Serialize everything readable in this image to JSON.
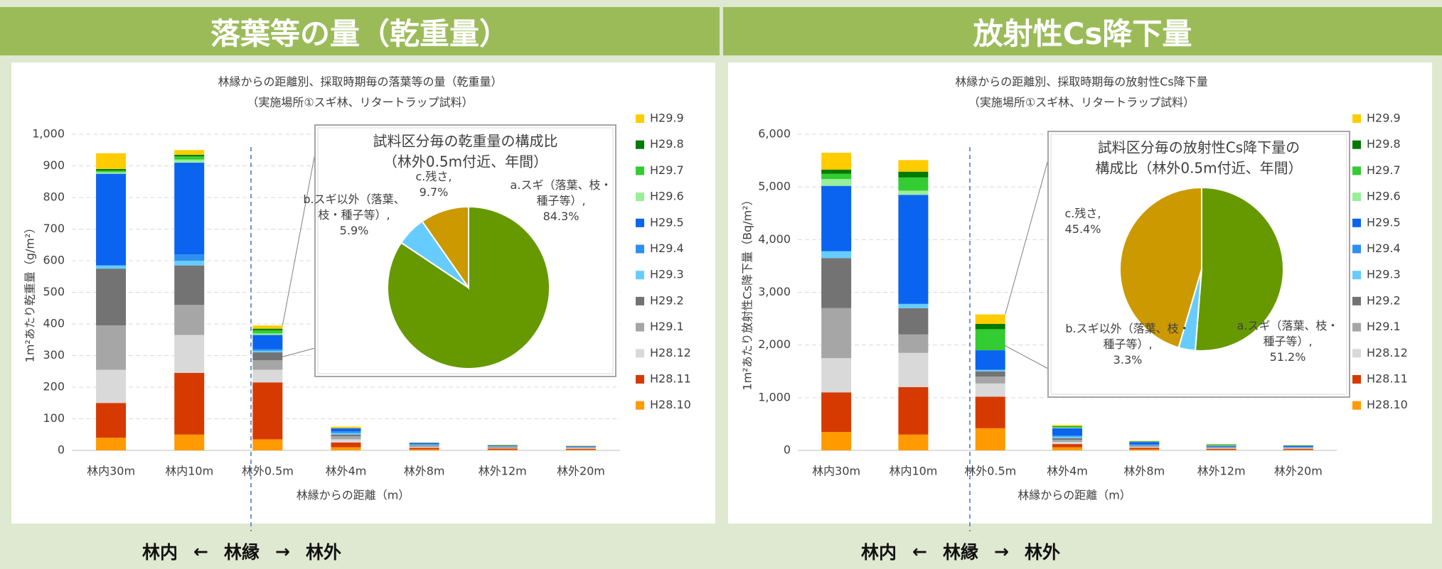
{
  "headers": [
    "落葉等の量（乾重量）",
    "放射性Cs降下量"
  ],
  "footer": [
    "林内",
    "←",
    "林縁",
    "→",
    "林外"
  ],
  "chart_data": [
    {
      "type": "bar",
      "stacked": true,
      "title": "林縁からの距離別、採取時期毎の落葉等の量（乾重量）",
      "subtitle": "（実施場所①スギ林、リタートラップ試料）",
      "xlabel": "林縁からの距離（m）",
      "ylabel": "1m²あたり乾重量（g/m²）",
      "categories": [
        "林内30m",
        "林内10m",
        "林外0.5m",
        "林外4m",
        "林外8m",
        "林外12m",
        "林外20m"
      ],
      "ylim": [
        0,
        1000
      ],
      "yticks": [
        0,
        100,
        200,
        300,
        400,
        500,
        600,
        700,
        800,
        900,
        {
          "value": 1000,
          "label": "1,000"
        }
      ],
      "grid": true,
      "legend": "right",
      "series": [
        {
          "name": "H28.10",
          "color": "#ff9a00",
          "values": [
            40,
            50,
            35,
            10,
            3,
            2,
            2
          ]
        },
        {
          "name": "H28.11",
          "color": "#d63a00",
          "values": [
            110,
            195,
            180,
            15,
            5,
            4,
            3
          ]
        },
        {
          "name": "H28.12",
          "color": "#d9d9d9",
          "values": [
            105,
            120,
            40,
            10,
            3,
            2,
            2
          ]
        },
        {
          "name": "H29.1",
          "color": "#a6a6a6",
          "values": [
            140,
            95,
            30,
            10,
            3,
            2,
            2
          ]
        },
        {
          "name": "H29.2",
          "color": "#737373",
          "values": [
            180,
            125,
            25,
            5,
            2,
            2,
            1
          ]
        },
        {
          "name": "H29.3",
          "color": "#66ccff",
          "values": [
            10,
            15,
            5,
            5,
            2,
            1,
            1
          ]
        },
        {
          "name": "H29.4",
          "color": "#2e8fef",
          "values": [
            0,
            20,
            5,
            5,
            2,
            1,
            1
          ]
        },
        {
          "name": "H29.5",
          "color": "#0a64f0",
          "values": [
            290,
            290,
            45,
            10,
            4,
            2,
            2
          ]
        },
        {
          "name": "H29.6",
          "color": "#99ee99",
          "values": [
            5,
            10,
            5,
            0,
            0,
            0,
            0
          ]
        },
        {
          "name": "H29.7",
          "color": "#33cc33",
          "values": [
            5,
            10,
            10,
            0,
            0,
            1,
            0
          ]
        },
        {
          "name": "H29.8",
          "color": "#007a00",
          "values": [
            5,
            5,
            5,
            0,
            0,
            0,
            0
          ]
        },
        {
          "name": "H29.9",
          "color": "#ffcc00",
          "values": [
            50,
            15,
            10,
            5,
            1,
            1,
            1
          ]
        }
      ]
    },
    {
      "type": "pie",
      "title": "試料区分毎の乾重量の構成比",
      "subtitle": "（林外0.5m付近、年間）",
      "categories": [
        "a.スギ（落葉、枝・種子等）,",
        "b.スギ以外（落葉、枝・種子等）,",
        "c.残さ,"
      ],
      "values": [
        84.3,
        5.9,
        9.7
      ],
      "value_labels": [
        "84.3%",
        "5.9%",
        "9.7%"
      ],
      "colors": [
        "#669900",
        "#66ccff",
        "#cc9900"
      ]
    },
    {
      "type": "bar",
      "stacked": true,
      "title": "林縁からの距離別、採取時期毎の放射性Cs降下量",
      "subtitle": "（実施場所①スギ林、リタートラップ試料）",
      "xlabel": "林縁からの距離（m）",
      "ylabel": "1m²あたり放射性Cs降下量（Bq/m²）",
      "categories": [
        "林内30m",
        "林内10m",
        "林外0.5m",
        "林外4m",
        "林外8m",
        "林外12m",
        "林外20m"
      ],
      "ylim": [
        0,
        6000
      ],
      "yticks": [
        0,
        {
          "value": 1000,
          "label": "1,000"
        },
        {
          "value": 2000,
          "label": "2,000"
        },
        {
          "value": 3000,
          "label": "3,000"
        },
        {
          "value": 4000,
          "label": "4,000"
        },
        {
          "value": 5000,
          "label": "5,000"
        },
        {
          "value": 6000,
          "label": "6,000"
        }
      ],
      "grid": true,
      "legend": "right",
      "series": [
        {
          "name": "H28.10",
          "color": "#ff9a00",
          "values": [
            350,
            300,
            420,
            60,
            20,
            10,
            10
          ]
        },
        {
          "name": "H28.11",
          "color": "#d63a00",
          "values": [
            750,
            900,
            600,
            60,
            30,
            20,
            20
          ]
        },
        {
          "name": "H28.12",
          "color": "#d9d9d9",
          "values": [
            650,
            650,
            250,
            40,
            15,
            10,
            10
          ]
        },
        {
          "name": "H29.1",
          "color": "#a6a6a6",
          "values": [
            950,
            350,
            130,
            40,
            15,
            10,
            10
          ]
        },
        {
          "name": "H29.2",
          "color": "#737373",
          "values": [
            950,
            500,
            100,
            30,
            10,
            10,
            5
          ]
        },
        {
          "name": "H29.3",
          "color": "#66ccff",
          "values": [
            130,
            80,
            30,
            30,
            10,
            5,
            5
          ]
        },
        {
          "name": "H29.4",
          "color": "#2e8fef",
          "values": [
            0,
            0,
            0,
            20,
            10,
            5,
            5
          ]
        },
        {
          "name": "H29.5",
          "color": "#0a64f0",
          "values": [
            1240,
            2070,
            370,
            140,
            50,
            20,
            25
          ]
        },
        {
          "name": "H29.6",
          "color": "#99ee99",
          "values": [
            130,
            80,
            0,
            10,
            5,
            10,
            0
          ]
        },
        {
          "name": "H29.7",
          "color": "#33cc33",
          "values": [
            100,
            250,
            400,
            20,
            5,
            10,
            5
          ]
        },
        {
          "name": "H29.8",
          "color": "#007a00",
          "values": [
            80,
            110,
            100,
            10,
            5,
            5,
            0
          ]
        },
        {
          "name": "H29.9",
          "color": "#ffcc00",
          "values": [
            320,
            220,
            180,
            20,
            5,
            5,
            5
          ]
        }
      ]
    },
    {
      "type": "pie",
      "title": "試料区分毎の放射性Cs降下量の",
      "subtitle": "構成比（林外0.5m付近、年間）",
      "categories": [
        "a.スギ（落葉、枝・種子等）,",
        "b.スギ以外（落葉、枝・種子等）,",
        "c.残さ,"
      ],
      "values": [
        51.2,
        3.3,
        45.4
      ],
      "value_labels": [
        "51.2%",
        "3.3%",
        "45.4%"
      ],
      "colors": [
        "#669900",
        "#66ccff",
        "#cc9900"
      ]
    }
  ]
}
